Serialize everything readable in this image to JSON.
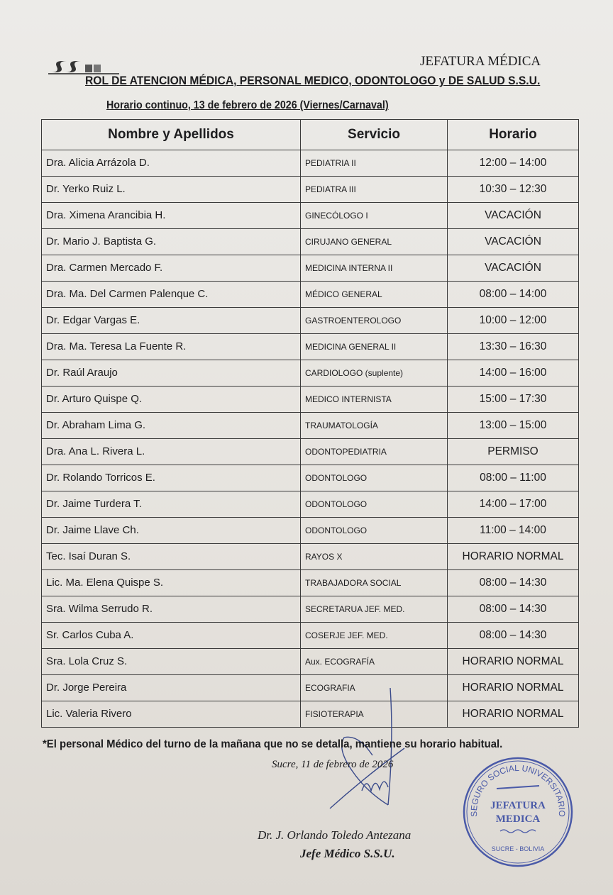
{
  "header": {
    "logo_text": "SSU",
    "department": "JEFATURA MÉDICA",
    "title": "ROL DE ATENCION MÉDICA, PERSONAL MEDICO, ODONTOLOGO y DE SALUD S.S.U.",
    "subtitle": "Horario continuo, 13 de febrero de 2026 (Viernes/Carnaval)"
  },
  "table": {
    "columns": [
      "Nombre y Apellidos",
      "Servicio",
      "Horario"
    ],
    "rows": [
      [
        "Dra. Alicia Arrázola D.",
        "PEDIATRIA II",
        "12:00 – 14:00"
      ],
      [
        "Dr. Yerko Ruiz L.",
        "PEDIATRA III",
        "10:30 – 12:30"
      ],
      [
        "Dra. Ximena Arancibia H.",
        "GINECÓLOGO I",
        "VACACIÓN"
      ],
      [
        "Dr. Mario J. Baptista G.",
        "CIRUJANO GENERAL",
        "VACACIÓN"
      ],
      [
        "Dra. Carmen Mercado F.",
        "MEDICINA INTERNA II",
        "VACACIÓN"
      ],
      [
        "Dra. Ma. Del Carmen Palenque C.",
        "MÉDICO GENERAL",
        "08:00 – 14:00"
      ],
      [
        "Dr. Edgar Vargas E.",
        "GASTROENTEROLOGO",
        "10:00 – 12:00"
      ],
      [
        "Dra. Ma. Teresa La Fuente R.",
        "MEDICINA GENERAL II",
        "13:30 – 16:30"
      ],
      [
        "Dr. Raúl Araujo",
        "CARDIOLOGO (suplente)",
        "14:00 – 16:00"
      ],
      [
        "Dr. Arturo Quispe Q.",
        "MEDICO INTERNISTA",
        "15:00 – 17:30"
      ],
      [
        "Dr. Abraham Lima G.",
        "TRAUMATOLOGÍA",
        "13:00 – 15:00"
      ],
      [
        "Dra. Ana L. Rivera L.",
        "ODONTOPEDIATRIA",
        "PERMISO"
      ],
      [
        "Dr. Rolando Torricos E.",
        "ODONTOLOGO",
        "08:00 – 11:00"
      ],
      [
        "Dr. Jaime Turdera T.",
        "ODONTOLOGO",
        "14:00 – 17:00"
      ],
      [
        "Dr. Jaime Llave Ch.",
        "ODONTOLOGO",
        "11:00 – 14:00"
      ],
      [
        "Tec. Isaí Duran S.",
        "RAYOS  X",
        "HORARIO NORMAL"
      ],
      [
        "Lic. Ma. Elena Quispe S.",
        "TRABAJADORA SOCIAL",
        "08:00 – 14:30"
      ],
      [
        "Sra. Wilma Serrudo R.",
        "SECRETARUA JEF. MED.",
        "08:00 – 14:30"
      ],
      [
        "Sr. Carlos Cuba A.",
        "COSERJE JEF. MED.",
        "08:00 – 14:30"
      ],
      [
        "Sra. Lola Cruz S.",
        "Aux. ECOGRAFÍA",
        "HORARIO NORMAL"
      ],
      [
        "Dr. Jorge Pereira",
        "ECOGRAFIA",
        "HORARIO NORMAL"
      ],
      [
        "Lic. Valeria Rivero",
        "FISIOTERAPIA",
        "HORARIO NORMAL"
      ]
    ]
  },
  "footer": {
    "note": "*El personal Médico del turno de la mañana que no se detalla, mantiene su horario habitual.",
    "place_date": "Sucre, 11 de febrero de 2026",
    "signer_name": "Dr. J. Orlando Toledo Antezana",
    "signer_title": "Jefe Médico S.S.U."
  },
  "stamp": {
    "ring_text": "SEGURO SOCIAL UNIVERSITARIO",
    "center_text": "JEFATURA MEDICA",
    "bottom_text": "SUCRE - BOLIVIA",
    "color": "#4a5aa8"
  }
}
